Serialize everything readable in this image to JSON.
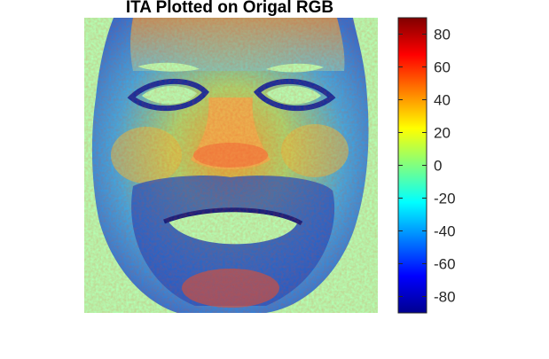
{
  "chart_data": {
    "type": "heatmap",
    "title": "ITA Plotted on Origal RGB",
    "xlabel": "",
    "ylabel": "",
    "colormap": "jet",
    "colorbar": {
      "min": -90,
      "max": 90,
      "ticks": [
        -80,
        -60,
        -40,
        -20,
        0,
        20,
        40,
        60,
        80
      ],
      "tick_labels": [
        "-80",
        "-60",
        "-40",
        "-20",
        "0",
        "20",
        "40",
        "60",
        "80"
      ]
    },
    "background_value": 0,
    "background_color": "#b3ffb3",
    "grid": false
  }
}
